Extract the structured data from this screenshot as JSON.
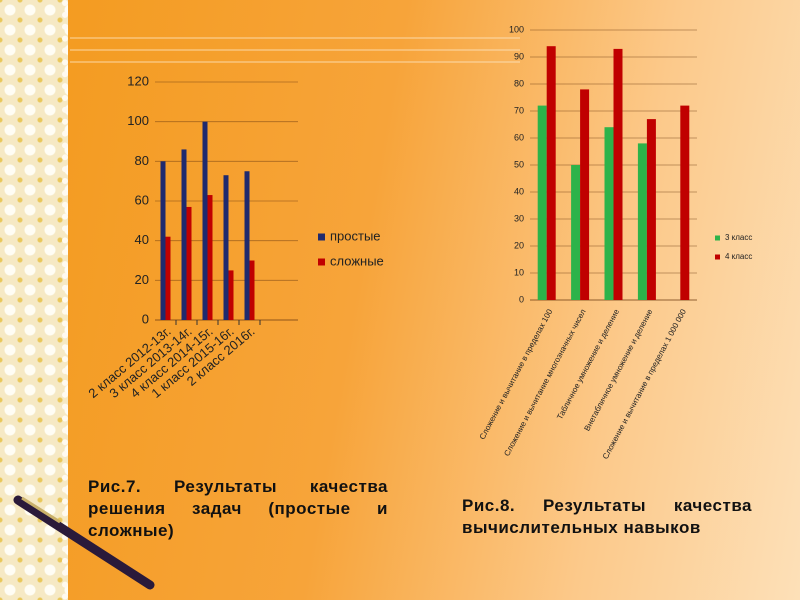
{
  "chart_data": [
    {
      "type": "bar",
      "categories": [
        "2 класс 2012-13г.",
        "3 класс 2013-14г.",
        "4 класс 2014-15г.",
        "1 класс 2015-16г.",
        "2 класс 2016г."
      ],
      "series": [
        {
          "name": "простые",
          "color": "#1f2a6e",
          "values": [
            80,
            86,
            100,
            73,
            75
          ]
        },
        {
          "name": "сложные",
          "color": "#c00000",
          "values": [
            42,
            57,
            63,
            25,
            30
          ]
        }
      ],
      "ylim": [
        0,
        120
      ],
      "yticks": [
        0,
        20,
        40,
        60,
        80,
        100,
        120
      ],
      "grid": true,
      "legend": "right"
    },
    {
      "type": "bar",
      "categories": [
        "Сложение и вычитание в пределах 100",
        "Сложение и вычитание многозначных чисел",
        "Табличное умножение и деление",
        "Внетабличное умножение и деление",
        "Сложение и вычитание в пределах 1 000 000"
      ],
      "series": [
        {
          "name": "3 класс",
          "color": "#2db34a",
          "values": [
            72,
            50,
            64,
            58,
            null
          ]
        },
        {
          "name": "4 класс",
          "color": "#c00000",
          "values": [
            94,
            78,
            93,
            67,
            72
          ]
        }
      ],
      "ylim": [
        0,
        100
      ],
      "yticks": [
        0,
        10,
        20,
        30,
        40,
        50,
        60,
        70,
        80,
        90,
        100
      ],
      "grid": true,
      "legend": "right"
    }
  ],
  "captions": [
    "Рис.7. Результаты качества решения задач (простые и сложные)",
    "Рис.8. Результаты качества вычислительных навыков"
  ]
}
